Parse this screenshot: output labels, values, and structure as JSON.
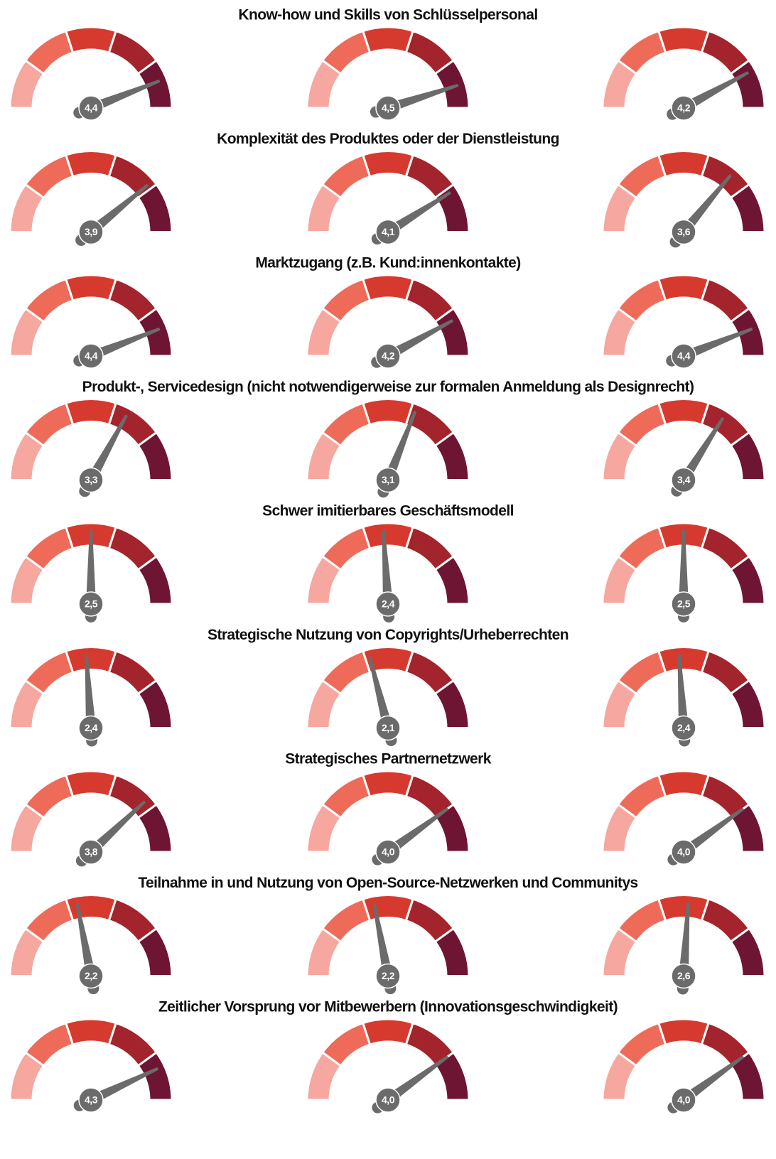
{
  "chart_data": [
    {
      "type": "gauge",
      "title": "Know-how und Skills von Schlüsselpersonal",
      "values": [
        4.4,
        4.5,
        4.2
      ],
      "value_labels": [
        "4,4",
        "4,5",
        "4,2"
      ],
      "ylim": [
        0,
        5
      ],
      "colors": [
        "#f6a7a0",
        "#ee6b5a",
        "#d63a2e",
        "#a3242c",
        "#6e1533"
      ]
    },
    {
      "type": "gauge",
      "title": "Komplexität des Produktes oder der Dienstleistung",
      "values": [
        3.9,
        4.1,
        3.6
      ],
      "value_labels": [
        "3,9",
        "4,1",
        "3,6"
      ],
      "ylim": [
        0,
        5
      ],
      "colors": [
        "#f6a7a0",
        "#ee6b5a",
        "#d63a2e",
        "#a3242c",
        "#6e1533"
      ]
    },
    {
      "type": "gauge",
      "title": "Marktzugang (z.B. Kund:innenkontakte)",
      "values": [
        4.4,
        4.2,
        4.4
      ],
      "value_labels": [
        "4,4",
        "4,2",
        "4,4"
      ],
      "ylim": [
        0,
        5
      ],
      "colors": [
        "#f6a7a0",
        "#ee6b5a",
        "#d63a2e",
        "#a3242c",
        "#6e1533"
      ]
    },
    {
      "type": "gauge",
      "title": "Produkt-, Servicedesign (nicht notwendigerweise zur formalen Anmeldung als Designrecht)",
      "values": [
        3.3,
        3.1,
        3.4
      ],
      "value_labels": [
        "3,3",
        "3,1",
        "3,4"
      ],
      "ylim": [
        0,
        5
      ],
      "colors": [
        "#f6a7a0",
        "#ee6b5a",
        "#d63a2e",
        "#a3242c",
        "#6e1533"
      ]
    },
    {
      "type": "gauge",
      "title": "Schwer imitierbares Geschäftsmodell",
      "values": [
        2.5,
        2.4,
        2.5
      ],
      "value_labels": [
        "2,5",
        "2,4",
        "2,5"
      ],
      "ylim": [
        0,
        5
      ],
      "colors": [
        "#f6a7a0",
        "#ee6b5a",
        "#d63a2e",
        "#a3242c",
        "#6e1533"
      ]
    },
    {
      "type": "gauge",
      "title": "Strategische Nutzung von Copyrights/Urheberrechten",
      "values": [
        2.4,
        2.1,
        2.4
      ],
      "value_labels": [
        "2,4",
        "2,1",
        "2,4"
      ],
      "ylim": [
        0,
        5
      ],
      "colors": [
        "#f6a7a0",
        "#ee6b5a",
        "#d63a2e",
        "#a3242c",
        "#6e1533"
      ]
    },
    {
      "type": "gauge",
      "title": "Strategisches Partnernetzwerk",
      "values": [
        3.8,
        4.0,
        4.0
      ],
      "value_labels": [
        "3,8",
        "4,0",
        "4,0"
      ],
      "ylim": [
        0,
        5
      ],
      "colors": [
        "#f6a7a0",
        "#ee6b5a",
        "#d63a2e",
        "#a3242c",
        "#6e1533"
      ]
    },
    {
      "type": "gauge",
      "title": "Teilnahme in und Nutzung von Open-Source-Netzwerken und Communitys",
      "values": [
        2.2,
        2.2,
        2.6
      ],
      "value_labels": [
        "2,2",
        "2,2",
        "2,6"
      ],
      "ylim": [
        0,
        5
      ],
      "colors": [
        "#f6a7a0",
        "#ee6b5a",
        "#d63a2e",
        "#a3242c",
        "#6e1533"
      ]
    },
    {
      "type": "gauge",
      "title": "Zeitlicher Vorsprung vor Mitbewerbern (Innovationsgeschwindigkeit)",
      "values": [
        4.3,
        4.0,
        4.0
      ],
      "value_labels": [
        "4,3",
        "4,0",
        "4,0"
      ],
      "ylim": [
        0,
        5
      ],
      "colors": [
        "#f6a7a0",
        "#ee6b5a",
        "#d63a2e",
        "#a3242c",
        "#6e1533"
      ]
    }
  ]
}
